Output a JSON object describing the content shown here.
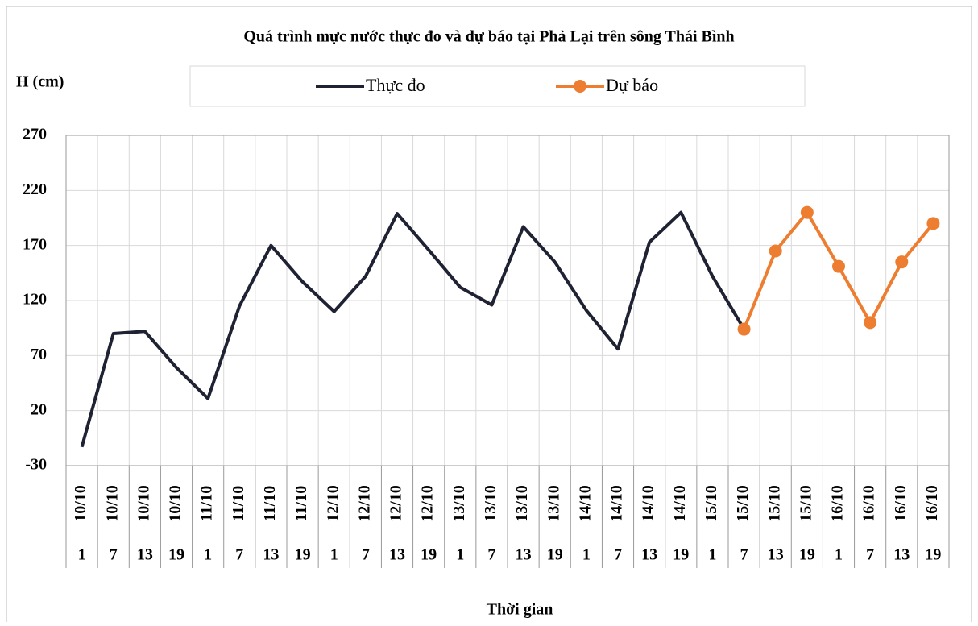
{
  "chart_data": {
    "type": "line",
    "title": "Quá trình mực nước thực đo và dự báo tại Phả Lại trên sông Thái Bình",
    "y_label": "H (cm)",
    "x_label": "Thời gian",
    "categories": [
      "10/10",
      "10/10",
      "10/10",
      "10/10",
      "11/10",
      "11/10",
      "11/10",
      "11/10",
      "12/10",
      "12/10",
      "12/10",
      "12/10",
      "13/10",
      "13/10",
      "13/10",
      "13/10",
      "14/10",
      "14/10",
      "14/10",
      "14/10",
      "15/10",
      "15/10",
      "15/10",
      "15/10",
      "16/10",
      "16/10",
      "16/10",
      "16/10"
    ],
    "hours": [
      1,
      7,
      13,
      19,
      1,
      7,
      13,
      19,
      1,
      7,
      13,
      19,
      1,
      7,
      13,
      19,
      1,
      7,
      13,
      19,
      1,
      7,
      13,
      19,
      1,
      7,
      13,
      19
    ],
    "series": [
      {
        "name": "Thực đo",
        "color": "#1f2233",
        "marker": false,
        "values": [
          -13,
          90,
          92,
          59,
          31,
          115,
          170,
          137,
          110,
          142,
          199,
          166,
          132,
          116,
          187,
          155,
          111,
          76,
          173,
          200,
          142,
          94,
          null,
          null,
          null,
          null,
          null,
          null
        ]
      },
      {
        "name": "Dự báo",
        "color": "#ed7d31",
        "marker": true,
        "values": [
          null,
          null,
          null,
          null,
          null,
          null,
          null,
          null,
          null,
          null,
          null,
          null,
          null,
          null,
          null,
          null,
          null,
          null,
          null,
          null,
          null,
          94,
          165,
          200,
          151,
          100,
          155,
          190
        ]
      }
    ],
    "ylim": [
      -30,
      270
    ],
    "yticks": [
      -30,
      20,
      70,
      120,
      170,
      220,
      270
    ],
    "grid": true
  }
}
